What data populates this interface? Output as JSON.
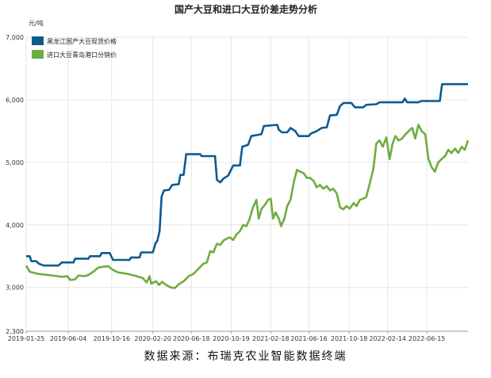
{
  "chart_data": {
    "type": "line",
    "title": "国产大豆和进口大豆价差走势分析",
    "ylabel": "元/吨",
    "ylim": [
      2300,
      7000
    ],
    "yticks": [
      "7,000",
      "6,000",
      "5,000",
      "4,000",
      "3,000",
      "2,300"
    ],
    "xlim": [
      "2019-01-25",
      "2022-10-20"
    ],
    "xticks": [
      "2019-01-25",
      "2019-06-04",
      "2019-10-16",
      "2020-02-20",
      "2020-06-18",
      "2020-10-19",
      "2021-02-18",
      "2021-06-16",
      "2021-10-18",
      "2022-02-14",
      "2022-06-15"
    ],
    "grid": true,
    "legend": "top-left",
    "series": [
      {
        "name": "黑龙江国产大豆现货价格",
        "color": "#0d5a91",
        "points": [
          [
            "2019-01-25",
            3500
          ],
          [
            "2019-02-05",
            3500
          ],
          [
            "2019-02-10",
            3420
          ],
          [
            "2019-02-25",
            3420
          ],
          [
            "2019-03-05",
            3380
          ],
          [
            "2019-03-20",
            3350
          ],
          [
            "2019-05-05",
            3350
          ],
          [
            "2019-05-15",
            3400
          ],
          [
            "2019-06-20",
            3400
          ],
          [
            "2019-06-25",
            3460
          ],
          [
            "2019-08-05",
            3460
          ],
          [
            "2019-08-10",
            3500
          ],
          [
            "2019-09-10",
            3500
          ],
          [
            "2019-09-15",
            3550
          ],
          [
            "2019-10-10",
            3550
          ],
          [
            "2019-10-20",
            3440
          ],
          [
            "2019-12-10",
            3440
          ],
          [
            "2019-12-15",
            3480
          ],
          [
            "2020-01-10",
            3480
          ],
          [
            "2020-01-15",
            3560
          ],
          [
            "2020-02-20",
            3560
          ],
          [
            "2020-02-28",
            3700
          ],
          [
            "2020-03-05",
            3750
          ],
          [
            "2020-03-12",
            3900
          ],
          [
            "2020-03-18",
            4450
          ],
          [
            "2020-03-25",
            4550
          ],
          [
            "2020-04-10",
            4560
          ],
          [
            "2020-04-20",
            4640
          ],
          [
            "2020-05-10",
            4650
          ],
          [
            "2020-05-15",
            4800
          ],
          [
            "2020-05-25",
            4800
          ],
          [
            "2020-06-02",
            5130
          ],
          [
            "2020-07-15",
            5130
          ],
          [
            "2020-07-20",
            5100
          ],
          [
            "2020-08-30",
            5100
          ],
          [
            "2020-09-05",
            4720
          ],
          [
            "2020-09-15",
            4680
          ],
          [
            "2020-09-25",
            4740
          ],
          [
            "2020-10-10",
            4790
          ],
          [
            "2020-10-25",
            4950
          ],
          [
            "2020-11-15",
            4950
          ],
          [
            "2020-11-22",
            5250
          ],
          [
            "2020-12-10",
            5280
          ],
          [
            "2020-12-20",
            5420
          ],
          [
            "2021-01-20",
            5450
          ],
          [
            "2021-01-28",
            5580
          ],
          [
            "2021-03-10",
            5600
          ],
          [
            "2021-03-15",
            5520
          ],
          [
            "2021-03-25",
            5480
          ],
          [
            "2021-04-10",
            5480
          ],
          [
            "2021-04-20",
            5550
          ],
          [
            "2021-05-05",
            5500
          ],
          [
            "2021-05-15",
            5420
          ],
          [
            "2021-06-15",
            5420
          ],
          [
            "2021-06-22",
            5460
          ],
          [
            "2021-07-10",
            5500
          ],
          [
            "2021-07-25",
            5550
          ],
          [
            "2021-08-10",
            5560
          ],
          [
            "2021-08-20",
            5750
          ],
          [
            "2021-09-10",
            5760
          ],
          [
            "2021-09-20",
            5900
          ],
          [
            "2021-10-01",
            5950
          ],
          [
            "2021-10-25",
            5950
          ],
          [
            "2021-11-05",
            5880
          ],
          [
            "2021-12-01",
            5880
          ],
          [
            "2021-12-10",
            5920
          ],
          [
            "2022-01-10",
            5930
          ],
          [
            "2022-01-20",
            5960
          ],
          [
            "2022-04-01",
            5960
          ],
          [
            "2022-04-08",
            6020
          ],
          [
            "2022-04-15",
            5960
          ],
          [
            "2022-05-20",
            5960
          ],
          [
            "2022-05-28",
            5980
          ],
          [
            "2022-07-25",
            5980
          ],
          [
            "2022-08-01",
            6250
          ],
          [
            "2022-10-20",
            6250
          ]
        ]
      },
      {
        "name": "进口大豆青岛港口分销价",
        "color": "#6fac3f",
        "points": [
          [
            "2019-01-25",
            3350
          ],
          [
            "2019-02-05",
            3250
          ],
          [
            "2019-03-01",
            3220
          ],
          [
            "2019-04-01",
            3200
          ],
          [
            "2019-05-01",
            3180
          ],
          [
            "2019-05-15",
            3170
          ],
          [
            "2019-06-01",
            3180
          ],
          [
            "2019-06-10",
            3120
          ],
          [
            "2019-06-25",
            3130
          ],
          [
            "2019-07-05",
            3190
          ],
          [
            "2019-07-25",
            3180
          ],
          [
            "2019-08-05",
            3200
          ],
          [
            "2019-08-20",
            3250
          ],
          [
            "2019-09-05",
            3320
          ],
          [
            "2019-09-20",
            3330
          ],
          [
            "2019-10-05",
            3340
          ],
          [
            "2019-10-20",
            3280
          ],
          [
            "2019-11-05",
            3240
          ],
          [
            "2019-12-01",
            3220
          ],
          [
            "2020-01-01",
            3180
          ],
          [
            "2020-01-20",
            3150
          ],
          [
            "2020-02-01",
            3080
          ],
          [
            "2020-02-10",
            3180
          ],
          [
            "2020-02-15",
            3060
          ],
          [
            "2020-03-01",
            3100
          ],
          [
            "2020-03-10",
            3040
          ],
          [
            "2020-03-20",
            3090
          ],
          [
            "2020-04-01",
            3040
          ],
          [
            "2020-04-15",
            3000
          ],
          [
            "2020-04-28",
            2990
          ],
          [
            "2020-05-10",
            3050
          ],
          [
            "2020-05-25",
            3100
          ],
          [
            "2020-06-10",
            3180
          ],
          [
            "2020-06-25",
            3220
          ],
          [
            "2020-07-10",
            3300
          ],
          [
            "2020-07-25",
            3380
          ],
          [
            "2020-08-05",
            3400
          ],
          [
            "2020-08-15",
            3580
          ],
          [
            "2020-08-25",
            3560
          ],
          [
            "2020-09-05",
            3700
          ],
          [
            "2020-09-15",
            3680
          ],
          [
            "2020-09-25",
            3750
          ],
          [
            "2020-10-05",
            3780
          ],
          [
            "2020-10-15",
            3800
          ],
          [
            "2020-10-25",
            3760
          ],
          [
            "2020-11-05",
            3850
          ],
          [
            "2020-11-15",
            3900
          ],
          [
            "2020-11-25",
            4000
          ],
          [
            "2020-12-05",
            3980
          ],
          [
            "2020-12-15",
            4100
          ],
          [
            "2020-12-25",
            4280
          ],
          [
            "2021-01-05",
            4400
          ],
          [
            "2021-01-12",
            4100
          ],
          [
            "2021-01-20",
            4250
          ],
          [
            "2021-02-01",
            4330
          ],
          [
            "2021-02-10",
            4400
          ],
          [
            "2021-02-18",
            4420
          ],
          [
            "2021-02-25",
            4100
          ],
          [
            "2021-03-05",
            4200
          ],
          [
            "2021-03-15",
            4100
          ],
          [
            "2021-03-22",
            3980
          ],
          [
            "2021-04-01",
            4100
          ],
          [
            "2021-04-10",
            4300
          ],
          [
            "2021-04-20",
            4400
          ],
          [
            "2021-05-01",
            4700
          ],
          [
            "2021-05-10",
            4880
          ],
          [
            "2021-05-20",
            4850
          ],
          [
            "2021-05-30",
            4830
          ],
          [
            "2021-06-10",
            4750
          ],
          [
            "2021-06-20",
            4750
          ],
          [
            "2021-07-01",
            4700
          ],
          [
            "2021-07-10",
            4600
          ],
          [
            "2021-07-20",
            4640
          ],
          [
            "2021-07-30",
            4580
          ],
          [
            "2021-08-10",
            4620
          ],
          [
            "2021-08-20",
            4550
          ],
          [
            "2021-08-30",
            4580
          ],
          [
            "2021-09-10",
            4500
          ],
          [
            "2021-09-20",
            4280
          ],
          [
            "2021-09-30",
            4250
          ],
          [
            "2021-10-10",
            4300
          ],
          [
            "2021-10-20",
            4260
          ],
          [
            "2021-11-01",
            4350
          ],
          [
            "2021-11-10",
            4300
          ],
          [
            "2021-11-20",
            4400
          ],
          [
            "2021-12-01",
            4420
          ],
          [
            "2021-12-10",
            4450
          ],
          [
            "2021-12-20",
            4650
          ],
          [
            "2022-01-01",
            4900
          ],
          [
            "2022-01-10",
            5300
          ],
          [
            "2022-01-20",
            5350
          ],
          [
            "2022-01-30",
            5250
          ],
          [
            "2022-02-10",
            5400
          ],
          [
            "2022-02-20",
            5050
          ],
          [
            "2022-03-01",
            5300
          ],
          [
            "2022-03-10",
            5420
          ],
          [
            "2022-03-20",
            5350
          ],
          [
            "2022-03-30",
            5380
          ],
          [
            "2022-04-10",
            5450
          ],
          [
            "2022-04-20",
            5500
          ],
          [
            "2022-05-01",
            5550
          ],
          [
            "2022-05-10",
            5380
          ],
          [
            "2022-05-20",
            5600
          ],
          [
            "2022-05-30",
            5500
          ],
          [
            "2022-06-10",
            5450
          ],
          [
            "2022-06-20",
            5050
          ],
          [
            "2022-06-30",
            4920
          ],
          [
            "2022-07-10",
            4850
          ],
          [
            "2022-07-20",
            5000
          ],
          [
            "2022-07-30",
            5050
          ],
          [
            "2022-08-10",
            5100
          ],
          [
            "2022-08-20",
            5200
          ],
          [
            "2022-08-30",
            5150
          ],
          [
            "2022-09-10",
            5220
          ],
          [
            "2022-09-20",
            5150
          ],
          [
            "2022-10-01",
            5250
          ],
          [
            "2022-10-10",
            5200
          ],
          [
            "2022-10-20",
            5350
          ]
        ]
      }
    ]
  },
  "caption": "数据来源：布瑞克农业智能数据终端"
}
